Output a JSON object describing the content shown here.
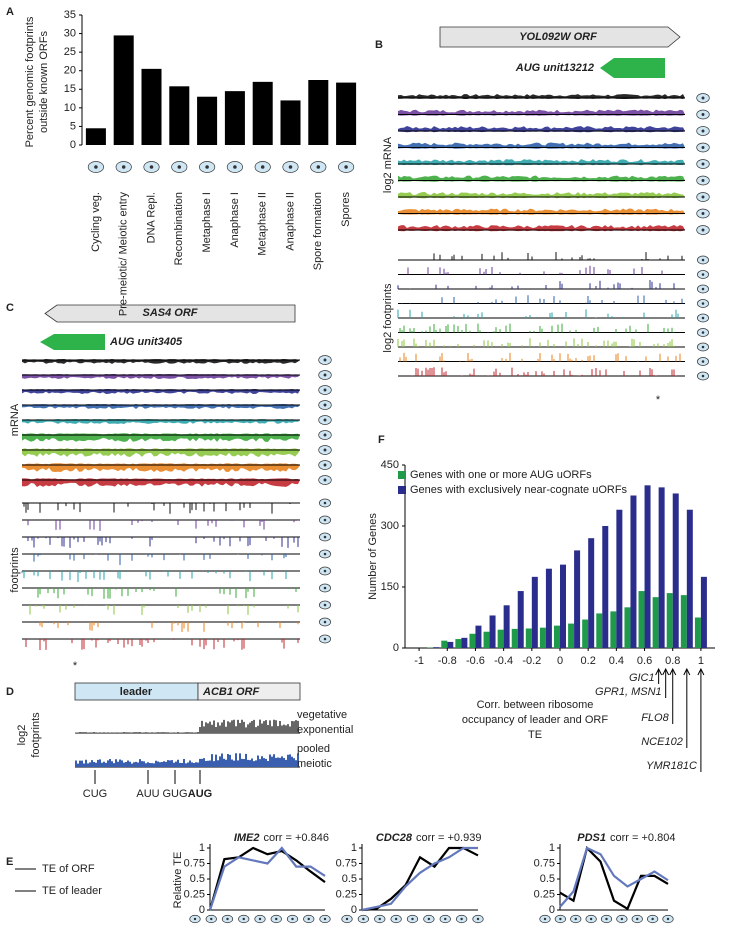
{
  "panel_labels": [
    "A",
    "B",
    "C",
    "D",
    "E",
    "F"
  ],
  "chart_data": [
    {
      "type": "bar",
      "ylabel": [
        "Percent genomic footprints",
        "outside known ORFs"
      ],
      "categories": [
        "Cycling veg.",
        "Pre-meiotic/ Meiotic entry",
        "DNA Repl.",
        "Recombination",
        "Metaphase I",
        "Anaphase I",
        "Metaphase II",
        "Anaphase II",
        "Spore formation",
        "Spores"
      ],
      "values": [
        4.5,
        29.5,
        20.5,
        15.8,
        13,
        14.5,
        17,
        12,
        17.5,
        16.8
      ],
      "color": "#000000",
      "ylim": [
        0,
        35
      ],
      "yticks": [
        0,
        5,
        10,
        15,
        20,
        25,
        30,
        35
      ]
    },
    {
      "type": "bar",
      "ylabel": "Number of Genes",
      "xlabel": [
        "Corr. between ribosome",
        "occupancy of leader and ORF",
        "TE"
      ],
      "x": [
        -1,
        -0.9,
        -0.8,
        -0.7,
        -0.6,
        -0.5,
        -0.4,
        -0.3,
        -0.2,
        -0.1,
        0,
        0.1,
        0.2,
        0.3,
        0.4,
        0.5,
        0.6,
        0.7,
        0.8,
        0.9,
        1
      ],
      "series": [
        {
          "name": "Genes with one or more AUG uORFs",
          "color": "#1f9a4a",
          "values": [
            0,
            1,
            18,
            22,
            35,
            40,
            45,
            47,
            48,
            50,
            55,
            60,
            70,
            85,
            90,
            100,
            140,
            125,
            135,
            130,
            75
          ]
        },
        {
          "name": "Genes with exclusively near-cognate uORFs",
          "color": "#2b2d8c",
          "values": [
            0,
            2,
            15,
            25,
            55,
            80,
            105,
            140,
            175,
            195,
            205,
            240,
            270,
            300,
            340,
            375,
            400,
            395,
            380,
            340,
            175
          ]
        }
      ],
      "xlim": [
        -1.1,
        1.1
      ],
      "xticks": [
        -1,
        -0.8,
        -0.6,
        -0.4,
        -0.2,
        0,
        0.2,
        0.4,
        0.6,
        0.8,
        1
      ],
      "ylim": [
        0,
        450
      ],
      "yticks": [
        0,
        150,
        300,
        450
      ],
      "legend": "upper left",
      "annotations": [
        "GIC1",
        "GPR1, MSN1",
        "FLO8",
        "NCE102",
        "YMR181C"
      ]
    },
    {
      "type": "line",
      "title": "IME2",
      "annotation": "corr = +0.846",
      "ylabel": "Relative TE",
      "categories": [
        null,
        null,
        null,
        null,
        null,
        null,
        null,
        null,
        null
      ],
      "series": [
        {
          "name": "TE of ORF",
          "color": "#000000",
          "values": [
            0,
            0.82,
            0.85,
            1.0,
            0.9,
            0.95,
            0.8,
            0.62,
            0.45
          ]
        },
        {
          "name": "TE of leader",
          "color": "#6479bd",
          "values": [
            0,
            0.7,
            0.85,
            0.8,
            0.75,
            1.0,
            0.7,
            0.7,
            0.55
          ]
        }
      ],
      "ylim": [
        0,
        1
      ],
      "yticks": [
        0,
        0.25,
        0.5,
        0.75,
        1
      ]
    },
    {
      "type": "line",
      "title": "CDC28",
      "annotation": "corr = +0.939",
      "categories": [
        null,
        null,
        null,
        null,
        null,
        null,
        null,
        null,
        null
      ],
      "series": [
        {
          "color": "#000000",
          "values": [
            0,
            0.02,
            0.18,
            0.4,
            0.85,
            0.7,
            1.0,
            1.0,
            0.88
          ]
        },
        {
          "color": "#6479bd",
          "values": [
            0,
            0.05,
            0.1,
            0.38,
            0.6,
            0.75,
            0.85,
            1.0,
            1.0
          ]
        }
      ],
      "ylim": [
        0,
        1
      ],
      "yticks": [
        0,
        0.25,
        0.5,
        0.75,
        1
      ]
    },
    {
      "type": "line",
      "title": "PDS1",
      "annotation": "corr = +0.804",
      "categories": [
        null,
        null,
        null,
        null,
        null,
        null,
        null,
        null,
        null
      ],
      "series": [
        {
          "color": "#000000",
          "values": [
            0.28,
            0.15,
            1.0,
            0.78,
            0.15,
            0.02,
            0.55,
            0.55,
            0.42
          ]
        },
        {
          "color": "#6479bd",
          "values": [
            0.05,
            0.3,
            1.0,
            0.9,
            0.55,
            0.38,
            0.5,
            0.62,
            0.48
          ]
        }
      ],
      "ylim": [
        0,
        1
      ],
      "yticks": [
        0,
        0.25,
        0.5,
        0.75,
        1
      ]
    }
  ],
  "browser_b": {
    "orf": "YOL092W ORF",
    "uorf": "AUG unit13212",
    "mrna_label": "log2 mRNA",
    "footprint_label": "log2 footprints",
    "marker": "*"
  },
  "browser_c": {
    "orf": "SAS4 ORF",
    "uorf": "AUG unit3405",
    "mrna_label": "mRNA",
    "footprint_label": "footprints",
    "marker": "*"
  },
  "browser_d": {
    "leader": "leader",
    "orf": "ACB1 ORF",
    "ylabel": [
      "log2",
      "footprints"
    ],
    "tracks": [
      [
        "vegetative",
        "exponential"
      ],
      [
        "pooled",
        "meiotic"
      ]
    ],
    "codons": [
      "CUG",
      "AUU",
      "GUG",
      "AUG"
    ]
  }
}
